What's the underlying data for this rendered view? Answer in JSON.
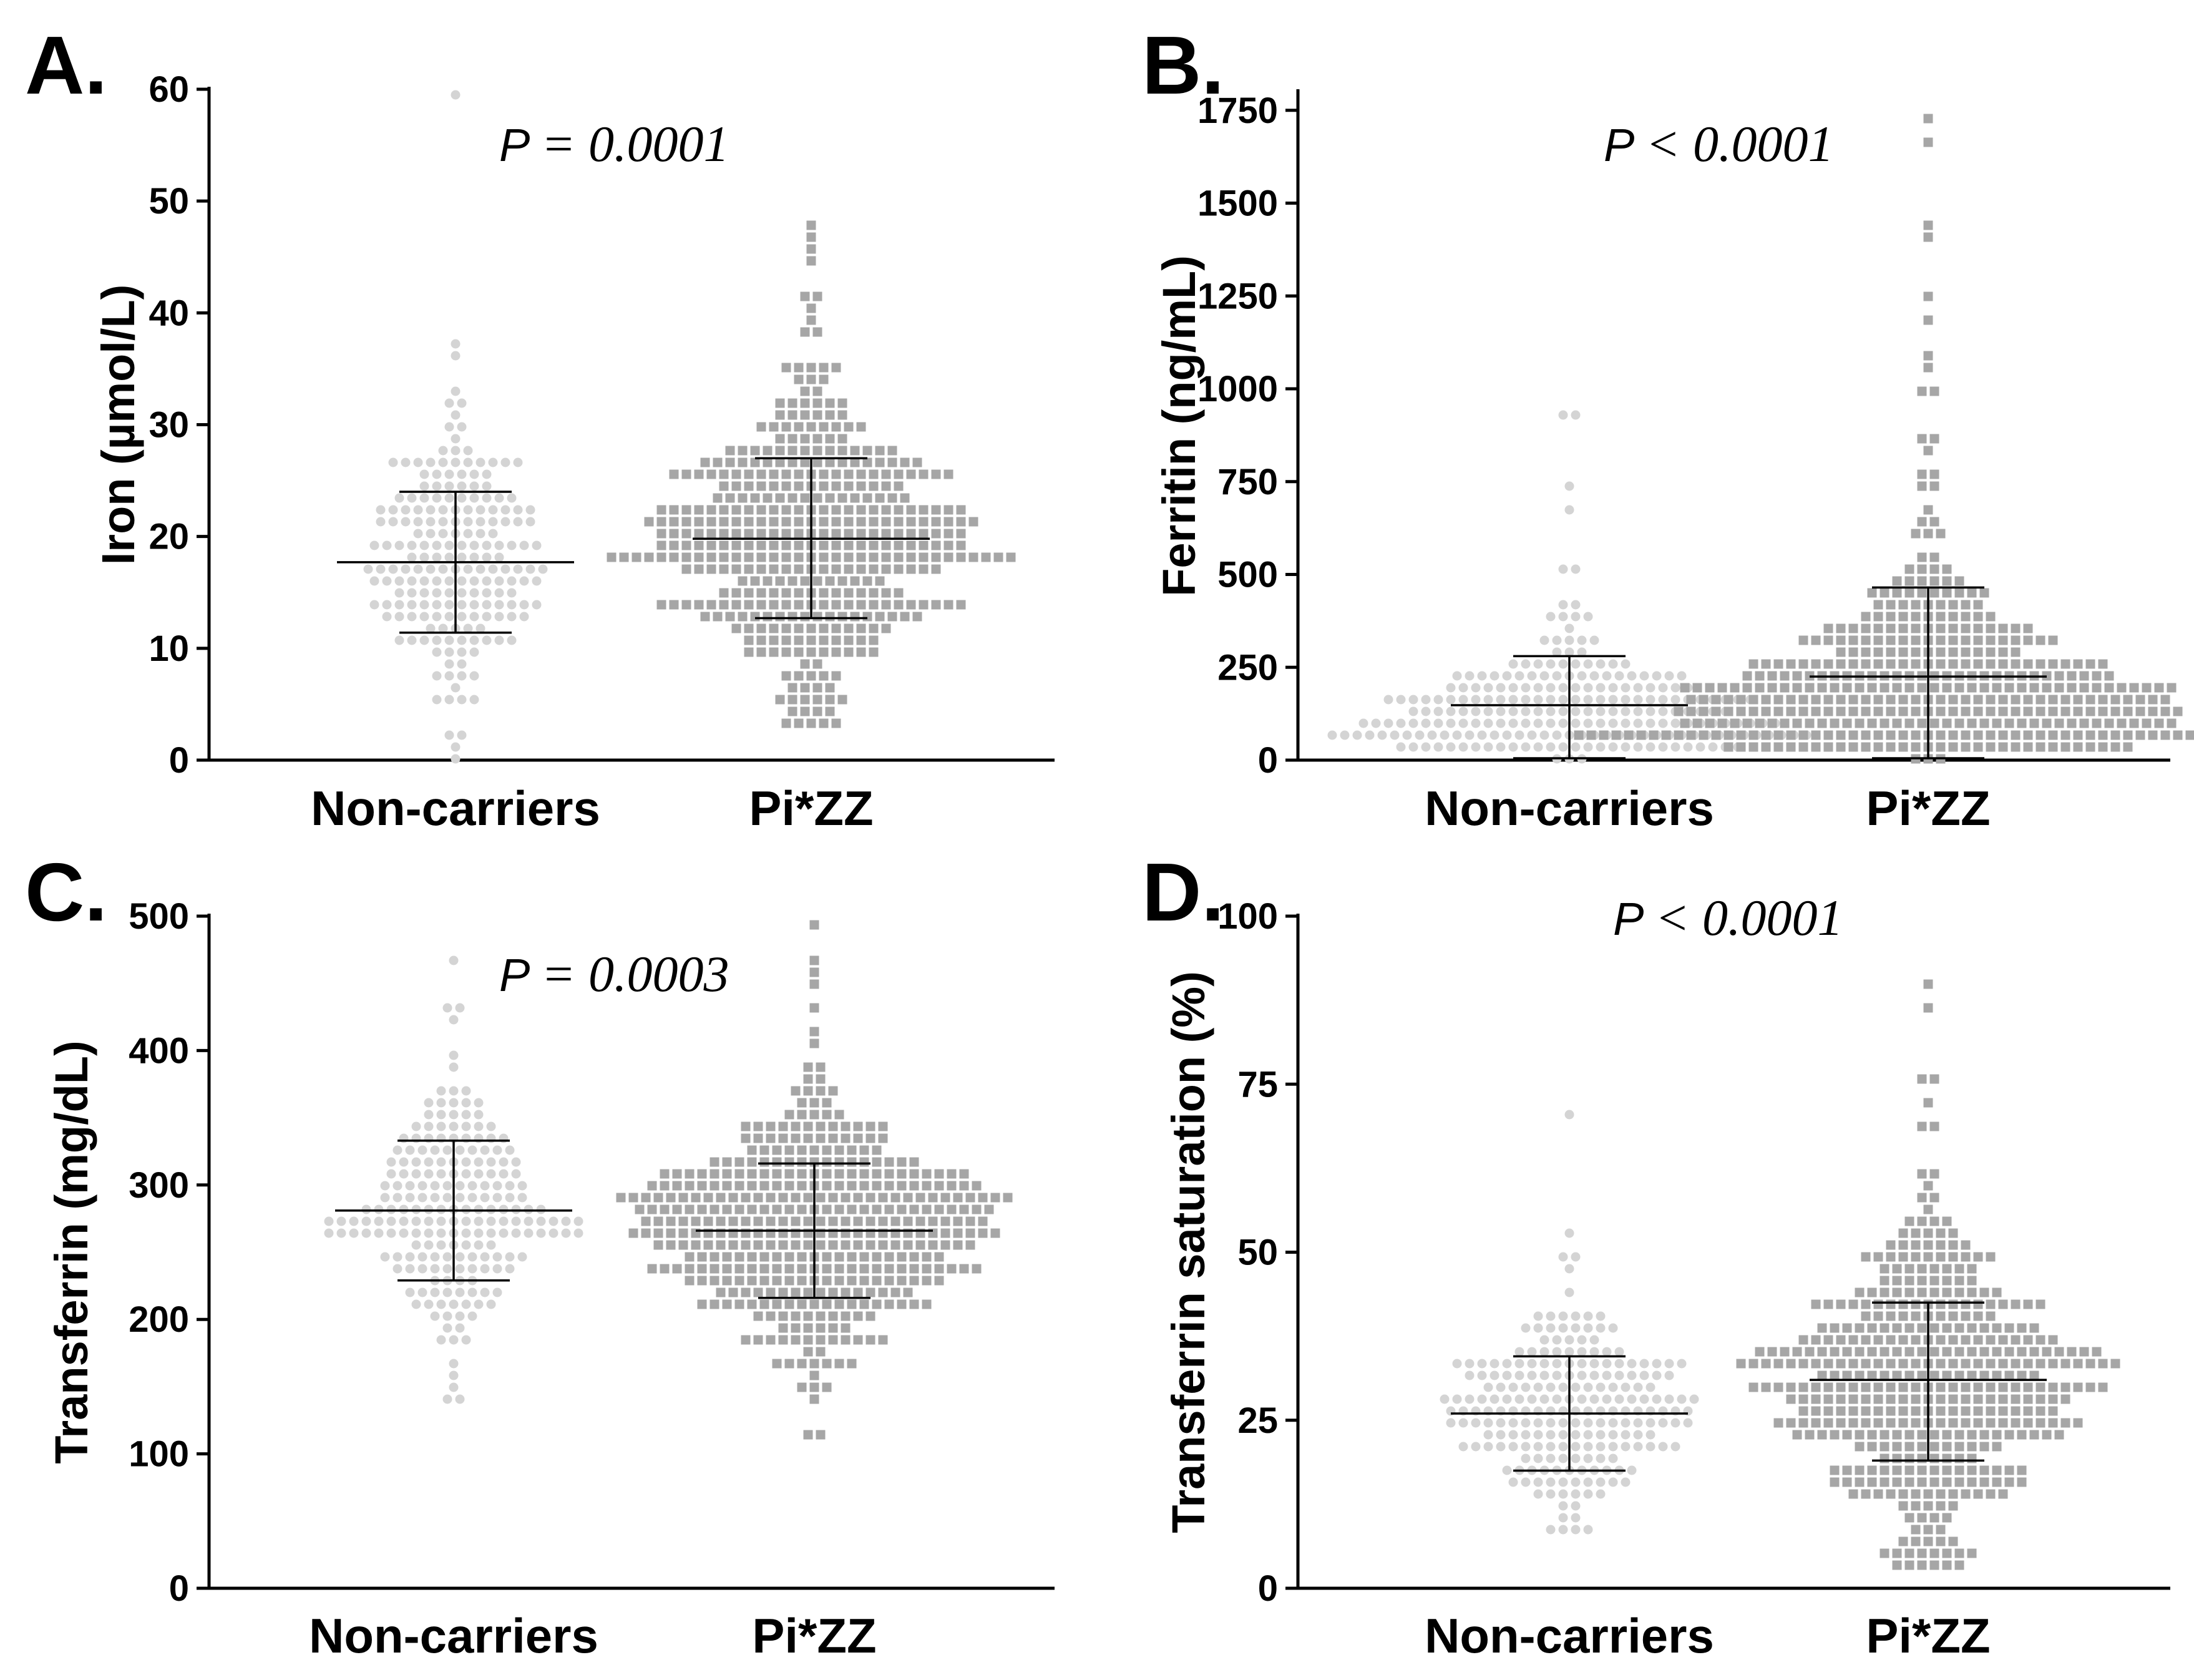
{
  "colors": {
    "noncarrier": "#d4d4d4",
    "pizz": "#a6a6a6",
    "axis": "#000000",
    "errorbar": "#000000"
  },
  "chart_data": [
    {
      "type": "scatter",
      "subtype": "dot-plot-with-mean-sd",
      "panel_label": "A.",
      "title": "",
      "ylabel": "Iron (µmol/L)",
      "ylim": [
        0,
        60
      ],
      "yticks": [
        0,
        10,
        20,
        30,
        40,
        50,
        60
      ],
      "categories": [
        "Non-carriers",
        "Pi*ZZ"
      ],
      "p_symbol": "P",
      "p_text": "= 0.0001",
      "series": [
        {
          "name": "Non-carriers",
          "mean": 17.7,
          "sd_low": 11.4,
          "sd_high": 24.0,
          "n": 200,
          "min": 0.5,
          "max": 59,
          "outliers": [
            59,
            36.8,
            35.8,
            32,
            31.4,
            1.5,
            2.3,
            0.5
          ],
          "marker": "circle"
        },
        {
          "name": "Pi*ZZ",
          "mean": 19.8,
          "sd_low": 12.7,
          "sd_high": 27.0,
          "n": 420,
          "min": 3,
          "max": 48,
          "outliers": [
            48,
            47,
            46,
            45,
            42,
            41,
            40,
            39.5,
            3,
            4,
            5
          ],
          "marker": "square"
        }
      ]
    },
    {
      "type": "scatter",
      "subtype": "dot-plot-with-mean-sd",
      "panel_label": "B.",
      "title": "",
      "ylabel": "Ferritin (ng/mL)",
      "ylim": [
        0,
        1800
      ],
      "yticks": [
        0,
        250,
        500,
        750,
        1000,
        1250,
        1500,
        1750
      ],
      "categories": [
        "Non-carriers",
        "Pi*ZZ"
      ],
      "p_symbol": "P",
      "p_text": "< 0.0001",
      "series": [
        {
          "name": "Non-carriers",
          "mean": 148,
          "sd_low": 5,
          "sd_high": 280,
          "n": 230,
          "min": 5,
          "max": 940,
          "outliers": [
            940,
            920,
            730,
            680,
            520,
            500
          ],
          "marker": "circle"
        },
        {
          "name": "Pi*ZZ",
          "mean": 225,
          "sd_low": 5,
          "sd_high": 465,
          "n": 430,
          "min": 5,
          "max": 1720,
          "outliers": [
            1720,
            1650,
            1440,
            1410,
            1240,
            1180,
            1090,
            1060,
            1000,
            990,
            870,
            840,
            780,
            760,
            740
          ],
          "marker": "square"
        }
      ]
    },
    {
      "type": "scatter",
      "subtype": "dot-plot-with-mean-sd",
      "panel_label": "C.",
      "title": "",
      "ylabel": "Transferrin (mg/dL)",
      "ylim": [
        0,
        500
      ],
      "yticks": [
        0,
        100,
        200,
        300,
        400,
        500
      ],
      "categories": [
        "Non-carriers",
        "Pi*ZZ"
      ],
      "p_symbol": "P",
      "p_text": "= 0.0003",
      "series": [
        {
          "name": "Non-carriers",
          "mean": 281,
          "sd_low": 229,
          "sd_high": 333,
          "n": 210,
          "min": 142,
          "max": 466,
          "outliers": [
            466,
            432,
            428,
            425,
            142,
            150
          ],
          "marker": "circle"
        },
        {
          "name": "Pi*ZZ",
          "mean": 266,
          "sd_low": 216,
          "sd_high": 316,
          "n": 420,
          "min": 110,
          "max": 495,
          "outliers": [
            495,
            465,
            455,
            448,
            412,
            405,
            110,
            140
          ],
          "marker": "square"
        }
      ]
    },
    {
      "type": "scatter",
      "subtype": "dot-plot-with-mean-sd",
      "panel_label": "D.",
      "title": "",
      "ylabel": "Transferrin saturation (%)",
      "ylim": [
        0,
        100
      ],
      "yticks": [
        0,
        25,
        50,
        75,
        100
      ],
      "categories": [
        "Non-carriers",
        "Pi*ZZ"
      ],
      "p_symbol": "P",
      "p_text": "< 0.0001",
      "series": [
        {
          "name": "Non-carriers",
          "mean": 26,
          "sd_low": 17.5,
          "sd_high": 34.5,
          "n": 220,
          "min": 9,
          "max": 70,
          "outliers": [
            70,
            50,
            49,
            48
          ],
          "marker": "circle"
        },
        {
          "name": "Pi*ZZ",
          "mean": 31,
          "sd_low": 19,
          "sd_high": 42.5,
          "n": 430,
          "min": 4,
          "max": 90,
          "outliers": [
            90,
            86,
            76,
            75,
            72,
            62,
            61,
            60,
            58,
            57,
            4,
            5,
            6
          ],
          "marker": "square"
        }
      ]
    }
  ]
}
